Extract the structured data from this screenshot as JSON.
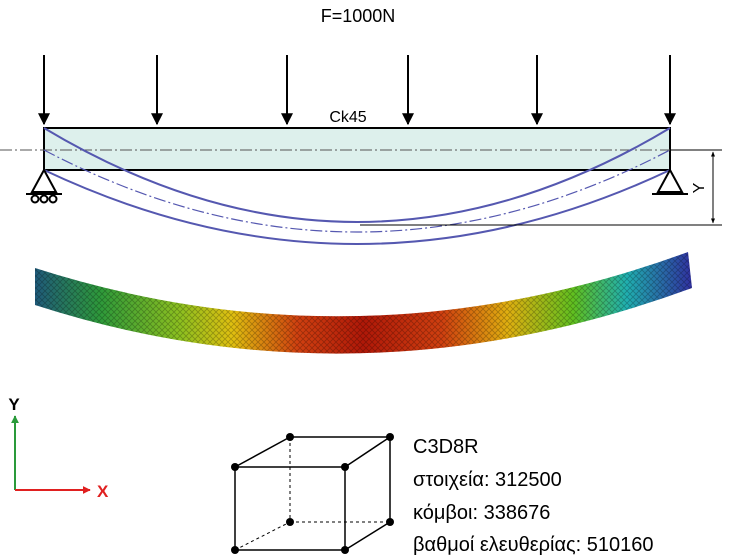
{
  "load_label": "F=1000N",
  "material_label": "Ck45",
  "deflection_label": "Y",
  "axes": {
    "y": "Y",
    "x": "X"
  },
  "element_info": {
    "type": "C3D8R",
    "elements": "στοιχεία: 312500",
    "nodes": "κόμβοι: 338676",
    "dof": "βαθμοί ελευθερίας: 510160"
  }
}
